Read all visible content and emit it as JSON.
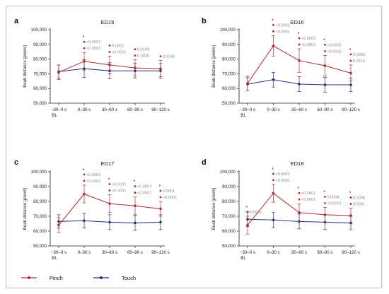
{
  "legend": [
    {
      "name": "Pinch",
      "color": "#b22a2f"
    },
    {
      "name": "Touch",
      "color": "#262f7a"
    }
  ],
  "chart_data": [
    {
      "type": "line",
      "letter": "a",
      "title": "ED15",
      "ylabel": "Beak distance [pixels]",
      "categories": [
        "−30–0 s",
        "0–30 s",
        "30–60 s",
        "60–90 s",
        "90–120 s"
      ],
      "baseline_label": "BL",
      "ylim": [
        50000,
        100000
      ],
      "yticks": [
        "50,000",
        "60,000",
        "70,000",
        "80,000",
        "90,000",
        "100,000"
      ],
      "series": [
        {
          "name": "Pinch",
          "values": [
            71000,
            78500,
            76000,
            74000,
            73500
          ],
          "error": [
            5000,
            6000,
            6000,
            5500,
            5500
          ]
        },
        {
          "name": "Touch",
          "values": [
            71500,
            73500,
            72000,
            72000,
            72000
          ],
          "error": [
            4500,
            6000,
            5500,
            5000,
            5000
          ]
        }
      ],
      "annotations": [
        {
          "index": 1,
          "star": true,
          "lines": [
            "<0.0001",
            "<0.0001"
          ]
        },
        {
          "index": 2,
          "star": false,
          "lines": [
            "0.0002",
            "<0.0001"
          ]
        },
        {
          "index": 3,
          "star": false,
          "lines": [
            "0.0199",
            "0.0028"
          ]
        },
        {
          "index": 4,
          "star": false,
          "lines": [
            "0.0138"
          ]
        }
      ]
    },
    {
      "type": "line",
      "letter": "b",
      "title": "ED16",
      "ylabel": "Beak distance [pixels]",
      "categories": [
        "−30–0 s",
        "0–30 s",
        "30–60 s",
        "60–90 s",
        "90–120 s"
      ],
      "baseline_label": "BL",
      "ylim": [
        50000,
        100000
      ],
      "yticks": [
        "50,000",
        "60,000",
        "70,000",
        "80,000",
        "90,000",
        "100,000"
      ],
      "series": [
        {
          "name": "Pinch",
          "values": [
            63500,
            89000,
            79000,
            75500,
            70500
          ],
          "error": [
            5000,
            7000,
            8000,
            7000,
            5500
          ]
        },
        {
          "name": "Touch",
          "values": [
            63000,
            66000,
            63000,
            62500,
            62500
          ],
          "error": [
            4500,
            5000,
            5000,
            5000,
            4500
          ]
        }
      ],
      "annotations": [
        {
          "index": 1,
          "star": true,
          "lines": [
            "<0.0001",
            "<0.0001"
          ]
        },
        {
          "index": 2,
          "star": true,
          "lines": [
            "<0.0001",
            "<0.0001"
          ]
        },
        {
          "index": 3,
          "star": true,
          "lines": [
            "<0.0001",
            "<0.0001"
          ]
        },
        {
          "index": 4,
          "star": true,
          "lines": [
            "0.0003",
            "0.0216"
          ]
        }
      ]
    },
    {
      "type": "line",
      "letter": "c",
      "title": "ED17",
      "ylabel": "Beak distance [pixels]",
      "categories": [
        "−30–0 s",
        "0–30 s",
        "30–60 s",
        "60–90 s",
        "90–120 s"
      ],
      "baseline_label": "BL",
      "ylim": [
        50000,
        100000
      ],
      "yticks": [
        "50,000",
        "60,000",
        "70,000",
        "80,000",
        "90,000",
        "100,000"
      ],
      "series": [
        {
          "name": "Pinch",
          "values": [
            64000,
            85000,
            78500,
            77000,
            75000
          ],
          "error": [
            5000,
            6000,
            6000,
            6000,
            5000
          ]
        },
        {
          "name": "Touch",
          "values": [
            66500,
            67000,
            66000,
            65500,
            66000
          ],
          "error": [
            4500,
            5000,
            5000,
            5000,
            5000
          ]
        }
      ],
      "annotations": [
        {
          "index": 1,
          "star": true,
          "lines": [
            "<0.0001",
            "<0.0001"
          ]
        },
        {
          "index": 2,
          "star": true,
          "lines": [
            "<0.0001",
            "<0.0001"
          ]
        },
        {
          "index": 3,
          "star": true,
          "lines": [
            "<0.0001",
            "<0.0001"
          ]
        },
        {
          "index": 4,
          "star": true,
          "lines": [
            "0.0001",
            "<0.0001"
          ]
        }
      ]
    },
    {
      "type": "line",
      "letter": "d",
      "title": "ED18",
      "ylabel": "Beak distance [pixels]",
      "categories": [
        "−30–0 s",
        "0–30 s",
        "30–60 s",
        "60–90 s",
        "90–120 s"
      ],
      "baseline_label": "BL",
      "ylim": [
        50000,
        100000
      ],
      "yticks": [
        "50,000",
        "60,000",
        "70,000",
        "80,000",
        "90,000",
        "100,000"
      ],
      "series": [
        {
          "name": "Pinch",
          "values": [
            64000,
            85500,
            72500,
            71000,
            70500
          ],
          "error": [
            6000,
            6000,
            6000,
            5000,
            5000
          ]
        },
        {
          "name": "Touch",
          "values": [
            68000,
            67500,
            66500,
            66000,
            65500
          ],
          "error": [
            5000,
            5000,
            5000,
            5000,
            4500
          ]
        }
      ],
      "annotations": [
        {
          "index": 0,
          "star": true,
          "lines": [
            "0.0022"
          ]
        },
        {
          "index": 1,
          "star": true,
          "lines": [
            "<0.0001",
            "<0.0001"
          ]
        },
        {
          "index": 2,
          "star": true,
          "lines": [
            "<0.0001",
            "<0.0001"
          ]
        },
        {
          "index": 3,
          "star": true,
          "lines": [
            "0.0004",
            "<0.0001"
          ]
        },
        {
          "index": 4,
          "star": true,
          "lines": [
            "0.0006",
            "0.0001"
          ]
        }
      ]
    }
  ]
}
